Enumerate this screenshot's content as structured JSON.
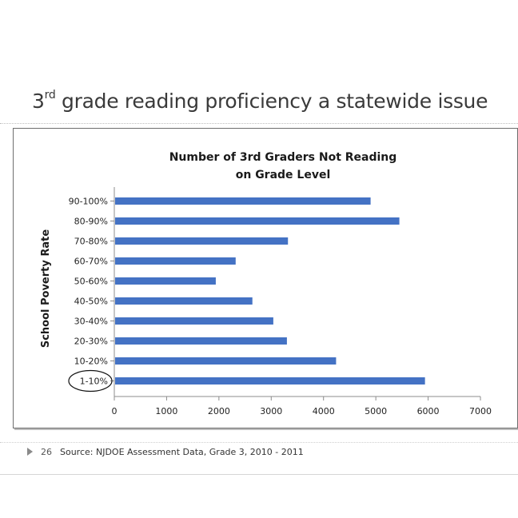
{
  "slide": {
    "title_prefix": "3",
    "title_sup": "rd",
    "title_rest": " grade reading proficiency a statewide issue",
    "page_number": "26",
    "source": "Source: NJDOE Assessment Data, Grade 3, 2010 - 2011"
  },
  "chart_data": {
    "type": "bar",
    "orientation": "horizontal",
    "title_line1": "Number of 3rd Graders Not Reading",
    "title_line2": "on Grade Level",
    "xlabel": "",
    "ylabel": "School Poverty Rate",
    "categories": [
      "90-100%",
      "80-90%",
      "70-80%",
      "60-70%",
      "50-60%",
      "40-50%",
      "30-40%",
      "20-30%",
      "10-20%",
      "1-10%"
    ],
    "values": [
      4900,
      5450,
      3320,
      2320,
      1940,
      2640,
      3040,
      3300,
      4240,
      5940
    ],
    "xlim": [
      0,
      7000
    ],
    "xticks": [
      0,
      1000,
      2000,
      3000,
      4000,
      5000,
      6000,
      7000
    ],
    "circled_category": "1-10%",
    "bar_color": "#4472c4",
    "grid": false,
    "legend": "none"
  }
}
